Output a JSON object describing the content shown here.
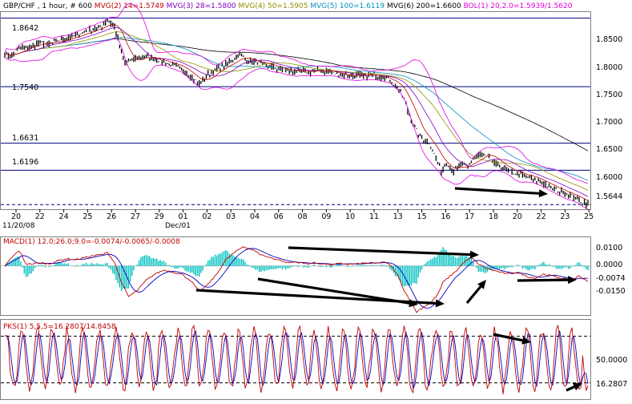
{
  "chart_data": [
    {
      "type": "line",
      "symbol": "GBP/CHF",
      "header": [
        "GBP/CHF , 1 hour, # 600",
        "MVG(2) 14=1.5749",
        "MVG(3) 28=1.5800",
        "MVG(4) 50=1.5905",
        "MVG(5) 100=1.6119",
        "MVG(6) 200=1.6600",
        "BOL(1) 20,2.0=1.5939/1.5620"
      ],
      "colors": {
        "title": "#000000",
        "mvg2": "#c00000",
        "mvg3": "#8000c0",
        "mvg4": "#909000",
        "mvg5": "#0090c0",
        "mvg6": "#000000",
        "bol": "#e000e0",
        "price": "#000000",
        "hline": "#000080"
      },
      "x_ticks": [
        "20",
        "22",
        "24",
        "25",
        "26",
        "27",
        "29",
        "01",
        "02",
        "03",
        "04",
        "06",
        "08",
        "09",
        "10",
        "11",
        "13",
        "15",
        "16",
        "17",
        "18",
        "20",
        "22",
        "23",
        "25"
      ],
      "x_sublabels": {
        "start": "11/20/08",
        "dec": "Dec/01"
      },
      "y_ticks": [
        "1.8500",
        "1.8000",
        "1.7500",
        "1.7000",
        "1.6500",
        "1.6000"
      ],
      "ylim": [
        1.557,
        1.874
      ],
      "levels": [
        {
          "label": "1.8642",
          "value": 1.8642
        },
        {
          "label": "1.7540",
          "value": 1.754
        },
        {
          "label": "1.6631",
          "value": 1.6631
        },
        {
          "label": "1.6196",
          "value": 1.6196
        }
      ],
      "last_price": {
        "label": "1.5644",
        "value": 1.5644
      },
      "price_anchors": [
        [
          0,
          1.808
        ],
        [
          4,
          1.803
        ],
        [
          9,
          1.817
        ],
        [
          15,
          1.819
        ],
        [
          20,
          1.825
        ],
        [
          25,
          1.822
        ],
        [
          30,
          1.828
        ],
        [
          35,
          1.832
        ],
        [
          40,
          1.836
        ],
        [
          45,
          1.842
        ],
        [
          50,
          1.847
        ],
        [
          55,
          1.851
        ],
        [
          58,
          1.862
        ],
        [
          62,
          1.85
        ],
        [
          65,
          1.82
        ],
        [
          68,
          1.792
        ],
        [
          73,
          1.798
        ],
        [
          80,
          1.803
        ],
        [
          88,
          1.796
        ],
        [
          95,
          1.788
        ],
        [
          100,
          1.782
        ],
        [
          105,
          1.772
        ],
        [
          110,
          1.758
        ],
        [
          113,
          1.768
        ],
        [
          117,
          1.778
        ],
        [
          122,
          1.785
        ],
        [
          128,
          1.795
        ],
        [
          133,
          1.806
        ],
        [
          137,
          1.796
        ],
        [
          142,
          1.793
        ],
        [
          150,
          1.786
        ],
        [
          158,
          1.781
        ],
        [
          165,
          1.778
        ],
        [
          172,
          1.778
        ],
        [
          180,
          1.781
        ],
        [
          188,
          1.774
        ],
        [
          196,
          1.772
        ],
        [
          203,
          1.771
        ],
        [
          210,
          1.773
        ],
        [
          218,
          1.765
        ],
        [
          222,
          1.752
        ],
        [
          226,
          1.735
        ],
        [
          228,
          1.715
        ],
        [
          231,
          1.695
        ],
        [
          235,
          1.672
        ],
        [
          240,
          1.665
        ],
        [
          244,
          1.64
        ],
        [
          247,
          1.617
        ],
        [
          250,
          1.632
        ],
        [
          254,
          1.618
        ],
        [
          258,
          1.628
        ],
        [
          262,
          1.624
        ],
        [
          266,
          1.642
        ],
        [
          270,
          1.645
        ],
        [
          275,
          1.64
        ],
        [
          278,
          1.628
        ],
        [
          283,
          1.622
        ],
        [
          288,
          1.615
        ],
        [
          293,
          1.611
        ],
        [
          298,
          1.607
        ],
        [
          303,
          1.601
        ],
        [
          308,
          1.593
        ],
        [
          313,
          1.587
        ],
        [
          318,
          1.583
        ],
        [
          322,
          1.577
        ],
        [
          326,
          1.569
        ],
        [
          330,
          1.565
        ]
      ],
      "annotations": [
        "arrow-down-trend"
      ]
    },
    {
      "type": "line",
      "header": "MACD(1) 12.0;26.0;9.0=-0.0074/-0.0065/-0.0008",
      "colors": {
        "macd": "#c00000",
        "signal": "#0000c0",
        "hist": "#00c0c0",
        "title": "#c00000",
        "tail": "#00c0c0"
      },
      "y_ticks": [
        "0.0100",
        "0.0000",
        "-0.0150"
      ],
      "ylim": [
        -0.024,
        0.014
      ],
      "last_value": "-0.0074",
      "macd_anchors": [
        [
          0,
          0
        ],
        [
          4,
          0.004
        ],
        [
          8,
          0.0075
        ],
        [
          12,
          0.001
        ],
        [
          16,
          0.001
        ],
        [
          20,
          0.0015
        ],
        [
          25,
          0.001
        ],
        [
          30,
          0.0025
        ],
        [
          35,
          0.0035
        ],
        [
          40,
          0.003
        ],
        [
          45,
          0.004
        ],
        [
          50,
          0.005
        ],
        [
          55,
          0.0055
        ],
        [
          58,
          0.0065
        ],
        [
          62,
          0.002
        ],
        [
          66,
          -0.008
        ],
        [
          70,
          -0.015
        ],
        [
          75,
          -0.012
        ],
        [
          80,
          -0.007
        ],
        [
          85,
          -0.004
        ],
        [
          90,
          -0.002
        ],
        [
          95,
          -0.003
        ],
        [
          100,
          -0.004
        ],
        [
          105,
          -0.007
        ],
        [
          110,
          -0.0125
        ],
        [
          115,
          -0.009
        ],
        [
          120,
          -0.004
        ],
        [
          125,
          0.003
        ],
        [
          130,
          0.0065
        ],
        [
          135,
          0.0095
        ],
        [
          140,
          0.008
        ],
        [
          145,
          0.0055
        ],
        [
          150,
          0.004
        ],
        [
          155,
          0.003
        ],
        [
          160,
          0.0015
        ],
        [
          165,
          0.002
        ],
        [
          170,
          0.001
        ],
        [
          175,
          0.0015
        ],
        [
          180,
          0.001
        ],
        [
          185,
          0.0005
        ],
        [
          190,
          0.0012
        ],
        [
          195,
          0.0008
        ],
        [
          200,
          0.001
        ],
        [
          205,
          0.0015
        ],
        [
          210,
          0.0012
        ],
        [
          214,
          0.002
        ],
        [
          218,
          0.0005
        ],
        [
          222,
          -0.004
        ],
        [
          226,
          -0.012
        ],
        [
          230,
          -0.018
        ],
        [
          233,
          -0.0225
        ],
        [
          237,
          -0.02
        ],
        [
          241,
          -0.018
        ],
        [
          245,
          -0.014
        ],
        [
          248,
          -0.008
        ],
        [
          252,
          -0.005
        ],
        [
          256,
          -0.002
        ],
        [
          260,
          0.002
        ],
        [
          264,
          0.004
        ],
        [
          268,
          0.001
        ],
        [
          272,
          -0.001
        ],
        [
          276,
          -0.002
        ],
        [
          280,
          -0.003
        ],
        [
          285,
          -0.004
        ],
        [
          290,
          -0.003
        ],
        [
          295,
          -0.005
        ],
        [
          300,
          -0.006
        ],
        [
          305,
          -0.004
        ],
        [
          310,
          -0.005
        ],
        [
          315,
          -0.006
        ],
        [
          320,
          -0.007
        ],
        [
          325,
          -0.005
        ],
        [
          330,
          -0.0074
        ]
      ],
      "annotations": [
        "arrow-1",
        "arrow-2",
        "arrow-3",
        "arrow-4",
        "arrow-5"
      ]
    },
    {
      "type": "line",
      "header": "PKS(1) 5,5,5=16.2807/14.8458",
      "colors": {
        "k": "#c00000",
        "d": "#0000c0",
        "title": "#c00000"
      },
      "y_ticks": [
        "50.0000"
      ],
      "ylim": [
        0,
        100
      ],
      "ref_levels": [
        80,
        20
      ],
      "last_value": "16.2807",
      "annotations": [
        "arrow-top",
        "arrow-bottom"
      ]
    }
  ]
}
